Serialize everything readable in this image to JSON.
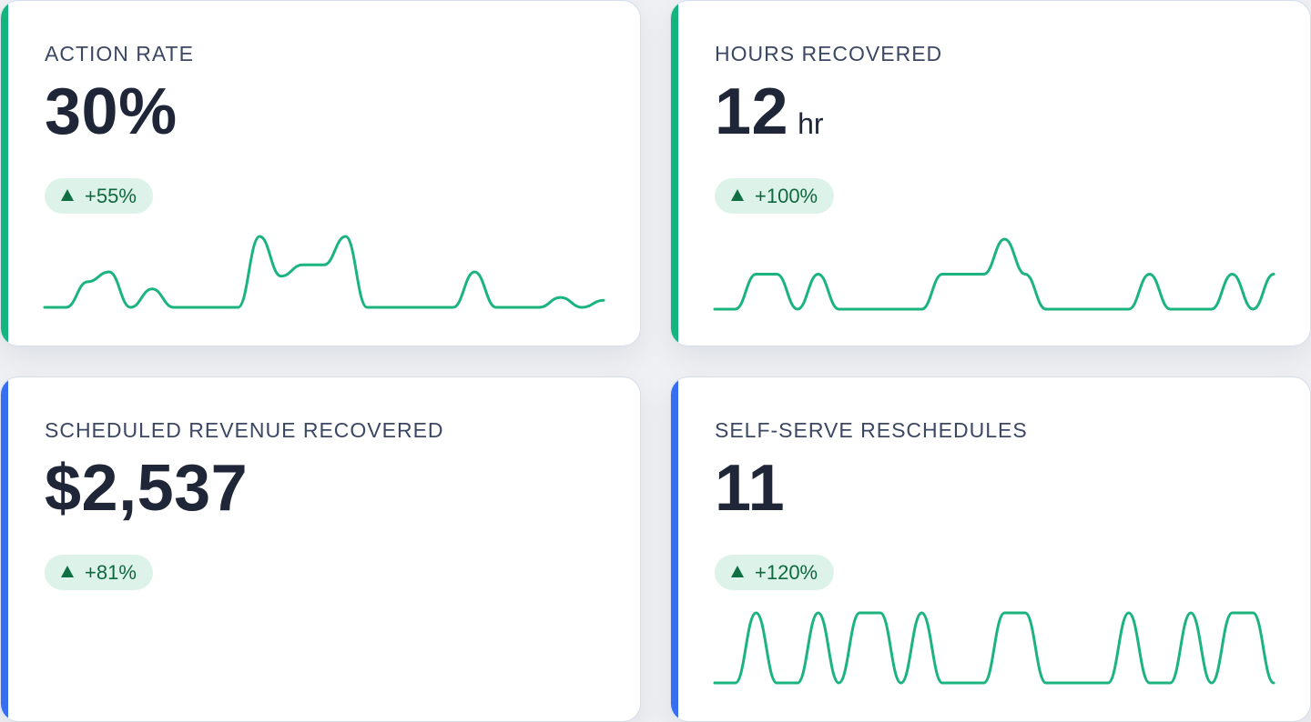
{
  "colors": {
    "accent_green": "#14b47f",
    "accent_blue": "#356ef0",
    "sparkline": "#1bb47f",
    "badge_bg": "#ddf3ea",
    "badge_text": "#10683f"
  },
  "cards": [
    {
      "label": "ACTION RATE",
      "value": "30%",
      "unit": "",
      "change": "+55%",
      "change_icon": "triangle-up-icon",
      "accent": "green",
      "sparkline": [
        0,
        0,
        0.36,
        0.5,
        0,
        0.26,
        0,
        0,
        0,
        0,
        1,
        0.44,
        0.6,
        0.6,
        1,
        0,
        0,
        0,
        0,
        0,
        0.5,
        0,
        0,
        0,
        0.14,
        0,
        0.1
      ]
    },
    {
      "label": "HOURS RECOVERED",
      "value": "12",
      "unit": "hr",
      "change": "+100%",
      "change_icon": "triangle-up-icon",
      "accent": "green",
      "sparkline": [
        0,
        0,
        0.5,
        0.5,
        0,
        0.5,
        0,
        0,
        0,
        0,
        0,
        0.5,
        0.5,
        0.5,
        1,
        0.5,
        0,
        0,
        0,
        0,
        0,
        0.5,
        0,
        0,
        0,
        0.5,
        0,
        0.5
      ]
    },
    {
      "label": "SCHEDULED REVENUE RECOVERED",
      "value": "$2,537",
      "unit": "",
      "change": "+81%",
      "change_icon": "triangle-up-icon",
      "accent": "blue",
      "sparkline": []
    },
    {
      "label": "SELF-SERVE RESCHEDULES",
      "value": "11",
      "unit": "",
      "change": "+120%",
      "change_icon": "triangle-up-icon",
      "accent": "blue",
      "sparkline": [
        0,
        0,
        1,
        0,
        0,
        1,
        0,
        1,
        1,
        0,
        1,
        0,
        0,
        0,
        1,
        1,
        0,
        0,
        0,
        0,
        1,
        0,
        0,
        1,
        0,
        1,
        1,
        0
      ]
    }
  ]
}
